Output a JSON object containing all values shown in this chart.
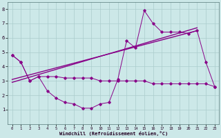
{
  "xlabel": "Windchill (Refroidissement éolien,°C)",
  "background_color": "#cce8e8",
  "line_color": "#880088",
  "grid_color": "#aacccc",
  "xlim": [
    -0.5,
    23.5
  ],
  "ylim": [
    0,
    8.5
  ],
  "xticks": [
    0,
    1,
    2,
    3,
    4,
    5,
    6,
    7,
    8,
    9,
    10,
    11,
    12,
    13,
    14,
    15,
    16,
    17,
    18,
    19,
    20,
    21,
    22,
    23
  ],
  "yticks": [
    1,
    2,
    3,
    4,
    5,
    6,
    7,
    8
  ],
  "series_v_x": [
    0,
    1,
    2,
    3,
    4,
    5,
    6,
    7,
    8,
    9,
    10,
    11,
    12,
    13,
    14,
    15,
    16,
    17,
    18,
    19,
    20,
    21,
    22,
    23
  ],
  "series_v_y": [
    4.8,
    4.3,
    3.0,
    3.3,
    2.3,
    1.8,
    1.5,
    1.4,
    1.1,
    1.1,
    1.4,
    1.5,
    3.1,
    5.8,
    5.3,
    7.9,
    7.0,
    6.4,
    6.4,
    6.4,
    6.3,
    6.5,
    4.3,
    2.6
  ],
  "series_flat_x": [
    0,
    1,
    2,
    3,
    4,
    5,
    6,
    7,
    8,
    9,
    10,
    11,
    12,
    13,
    14,
    15,
    16,
    17,
    18,
    19,
    20,
    21,
    22,
    23
  ],
  "series_flat_y": [
    4.8,
    4.3,
    3.0,
    3.3,
    3.3,
    3.3,
    3.2,
    3.2,
    3.2,
    3.2,
    3.0,
    3.0,
    3.0,
    3.0,
    3.0,
    3.0,
    2.8,
    2.8,
    2.8,
    2.8,
    2.8,
    2.8,
    2.8,
    2.6
  ],
  "trend1_x": [
    0,
    21
  ],
  "trend1_y": [
    3.1,
    6.5
  ],
  "trend2_x": [
    0,
    21
  ],
  "trend2_y": [
    2.9,
    6.7
  ]
}
